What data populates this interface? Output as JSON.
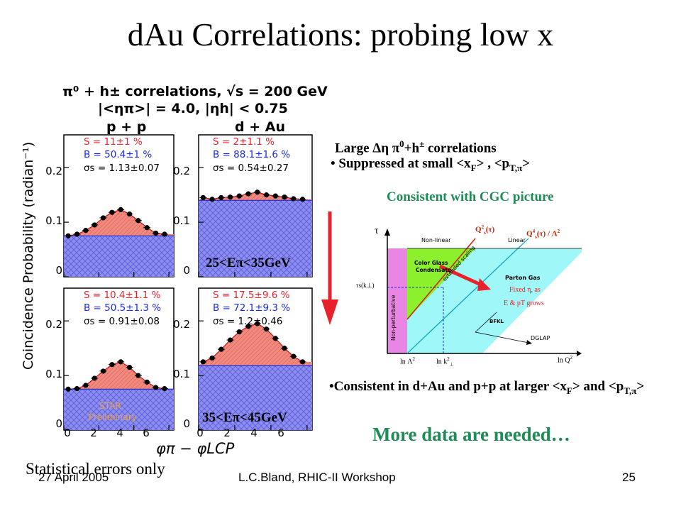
{
  "slide": {
    "title": "dAu Correlations: probing low x",
    "footer_date": "27 April 2005",
    "footer_center": "L.C.Bland, RHIC-II Workshop",
    "page_number": "25",
    "stat_errors": "Statistical errors only"
  },
  "plot": {
    "header_line1": "π⁰ + h± correlations, √s = 200 GeV",
    "header_line2": "|<ηπ>| = 4.0, |ηh| < 0.75",
    "col_left": "p + p",
    "col_right": "d + Au",
    "ylabel": "Coincidence Probability (radian⁻¹)",
    "xlabel": "φπ − φLCP",
    "yticks": [
      "0.2",
      "0.1",
      "0"
    ],
    "xticks": [
      "0",
      "2",
      "4",
      "6"
    ],
    "energy_top": "25<Eπ<35GeV",
    "energy_bottom": "35<Eπ<45GeV",
    "watermark": [
      "STAR",
      "Preliminary"
    ],
    "panels": [
      {
        "S": "S = 11±1 %",
        "B": "B = 50.4±1 %",
        "sig": "σs = 1.13±0.07"
      },
      {
        "S": "S = 2±1.1 %",
        "B": "B = 88.1±1.6 %",
        "sig": "σs = 0.54±0.27"
      },
      {
        "S": "S = 10.4±1.1 %",
        "B": "B = 50.5±1.3 %",
        "sig": "σs = 0.91±0.08"
      },
      {
        "S": "S = 17.5±9.6 %",
        "B": "B = 72.1±9.3 %",
        "sig": "σs = 1.2±0.46"
      }
    ]
  },
  "chart_data": [
    {
      "type": "scatter",
      "panel": "p+p 25<Eπ<35GeV",
      "x": [
        0.25,
        0.75,
        1.25,
        1.75,
        2.25,
        2.75,
        3.25,
        3.75,
        4.25,
        4.75,
        5.25,
        5.75
      ],
      "y": [
        0.075,
        0.078,
        0.085,
        0.095,
        0.108,
        0.118,
        0.123,
        0.115,
        0.103,
        0.09,
        0.08,
        0.078
      ],
      "background": 0.075,
      "xlim": [
        0,
        6.28
      ],
      "ylim": [
        0,
        0.26
      ]
    },
    {
      "type": "scatter",
      "panel": "d+Au 25<Eπ<35GeV",
      "x": [
        0.25,
        0.75,
        1.25,
        1.75,
        2.25,
        2.75,
        3.25,
        3.75,
        4.25,
        4.75,
        5.25,
        5.75
      ],
      "y": [
        0.145,
        0.142,
        0.145,
        0.146,
        0.148,
        0.152,
        0.155,
        0.15,
        0.148,
        0.146,
        0.143,
        0.142
      ],
      "background": 0.14,
      "xlim": [
        0,
        6.28
      ],
      "ylim": [
        0,
        0.26
      ]
    },
    {
      "type": "scatter",
      "panel": "p+p 35<Eπ<45GeV",
      "x": [
        0.25,
        0.75,
        1.25,
        1.75,
        2.25,
        2.75,
        3.25,
        3.75,
        4.25,
        4.75,
        5.25,
        5.75
      ],
      "y": [
        0.075,
        0.076,
        0.082,
        0.095,
        0.108,
        0.12,
        0.125,
        0.115,
        0.1,
        0.088,
        0.078,
        0.076
      ],
      "background": 0.075,
      "xlim": [
        0,
        6.28
      ],
      "ylim": [
        0,
        0.26
      ]
    },
    {
      "type": "scatter",
      "panel": "d+Au 35<Eπ<45GeV",
      "x": [
        0.25,
        0.75,
        1.25,
        1.75,
        2.25,
        2.75,
        3.25,
        3.75,
        4.25,
        4.75,
        5.25,
        5.75
      ],
      "y": [
        0.125,
        0.132,
        0.148,
        0.165,
        0.18,
        0.19,
        0.195,
        0.185,
        0.168,
        0.15,
        0.135,
        0.125
      ],
      "background": 0.118,
      "xlim": [
        0,
        6.28
      ],
      "ylim": [
        0,
        0.26
      ]
    }
  ],
  "right": {
    "line1_prefix": "Large Δη π",
    "line1_sup": "0",
    "line1_mid": "+h",
    "line1_sup2": "±",
    "line1_suffix": " correlations",
    "line2_bullet": "•",
    "line2": " Suppressed at small <x",
    "line2_sub": "F",
    "line2_mid": "> , <p",
    "line2_sub2": "T,π",
    "line2_end": ">",
    "cgc": "Consistent with CGC picture",
    "consistent_prefix": "•Consistent in d+Au and p+p at larger <x",
    "consistent_sub": "F",
    "consistent_mid": "> and <p",
    "consistent_sub2": "T,π",
    "consistent_end": ">",
    "more_data": "More data are needed…"
  },
  "diagram": {
    "tau": "τ",
    "nonlinear": "Non-linear",
    "linear": "Linear",
    "qs2": "Q",
    "qs2_sup": "2",
    "qs2_sub": "s",
    "qs2_arg": "(τ)",
    "qs4": "Q",
    "qs4_sup": "4",
    "qs4_sub": "s",
    "qs4_arg": "(τ) / Λ",
    "qs4_sup2": "2",
    "cgc1": "Color Glass",
    "cgc2": "Condensate",
    "extended": "extended scaling",
    "parton_gas": "Parton Gas",
    "tau_s": "τs(k⊥)",
    "fixed1": "Fixed η, as",
    "fixed2": "E & pT grows",
    "bfkl": "BFKL",
    "dglap": "DGLAP",
    "nonpert": "Non-perturbative",
    "lnl": "ln Λ",
    "lnl_sup": "2",
    "lnk": "ln k",
    "lnk_sup": "2",
    "lnk_sub": "⊥",
    "lnq": "ln Q",
    "lnq_sup": "2"
  },
  "colors": {
    "signal": "#f08a7e",
    "background_fill": "#8d8ef0",
    "arrow_red": "#e8222b",
    "green_text": "#1f8c55",
    "cgc_green": "#8df02c",
    "cyan": "#9ff7f7",
    "magenta": "#e985e4"
  }
}
